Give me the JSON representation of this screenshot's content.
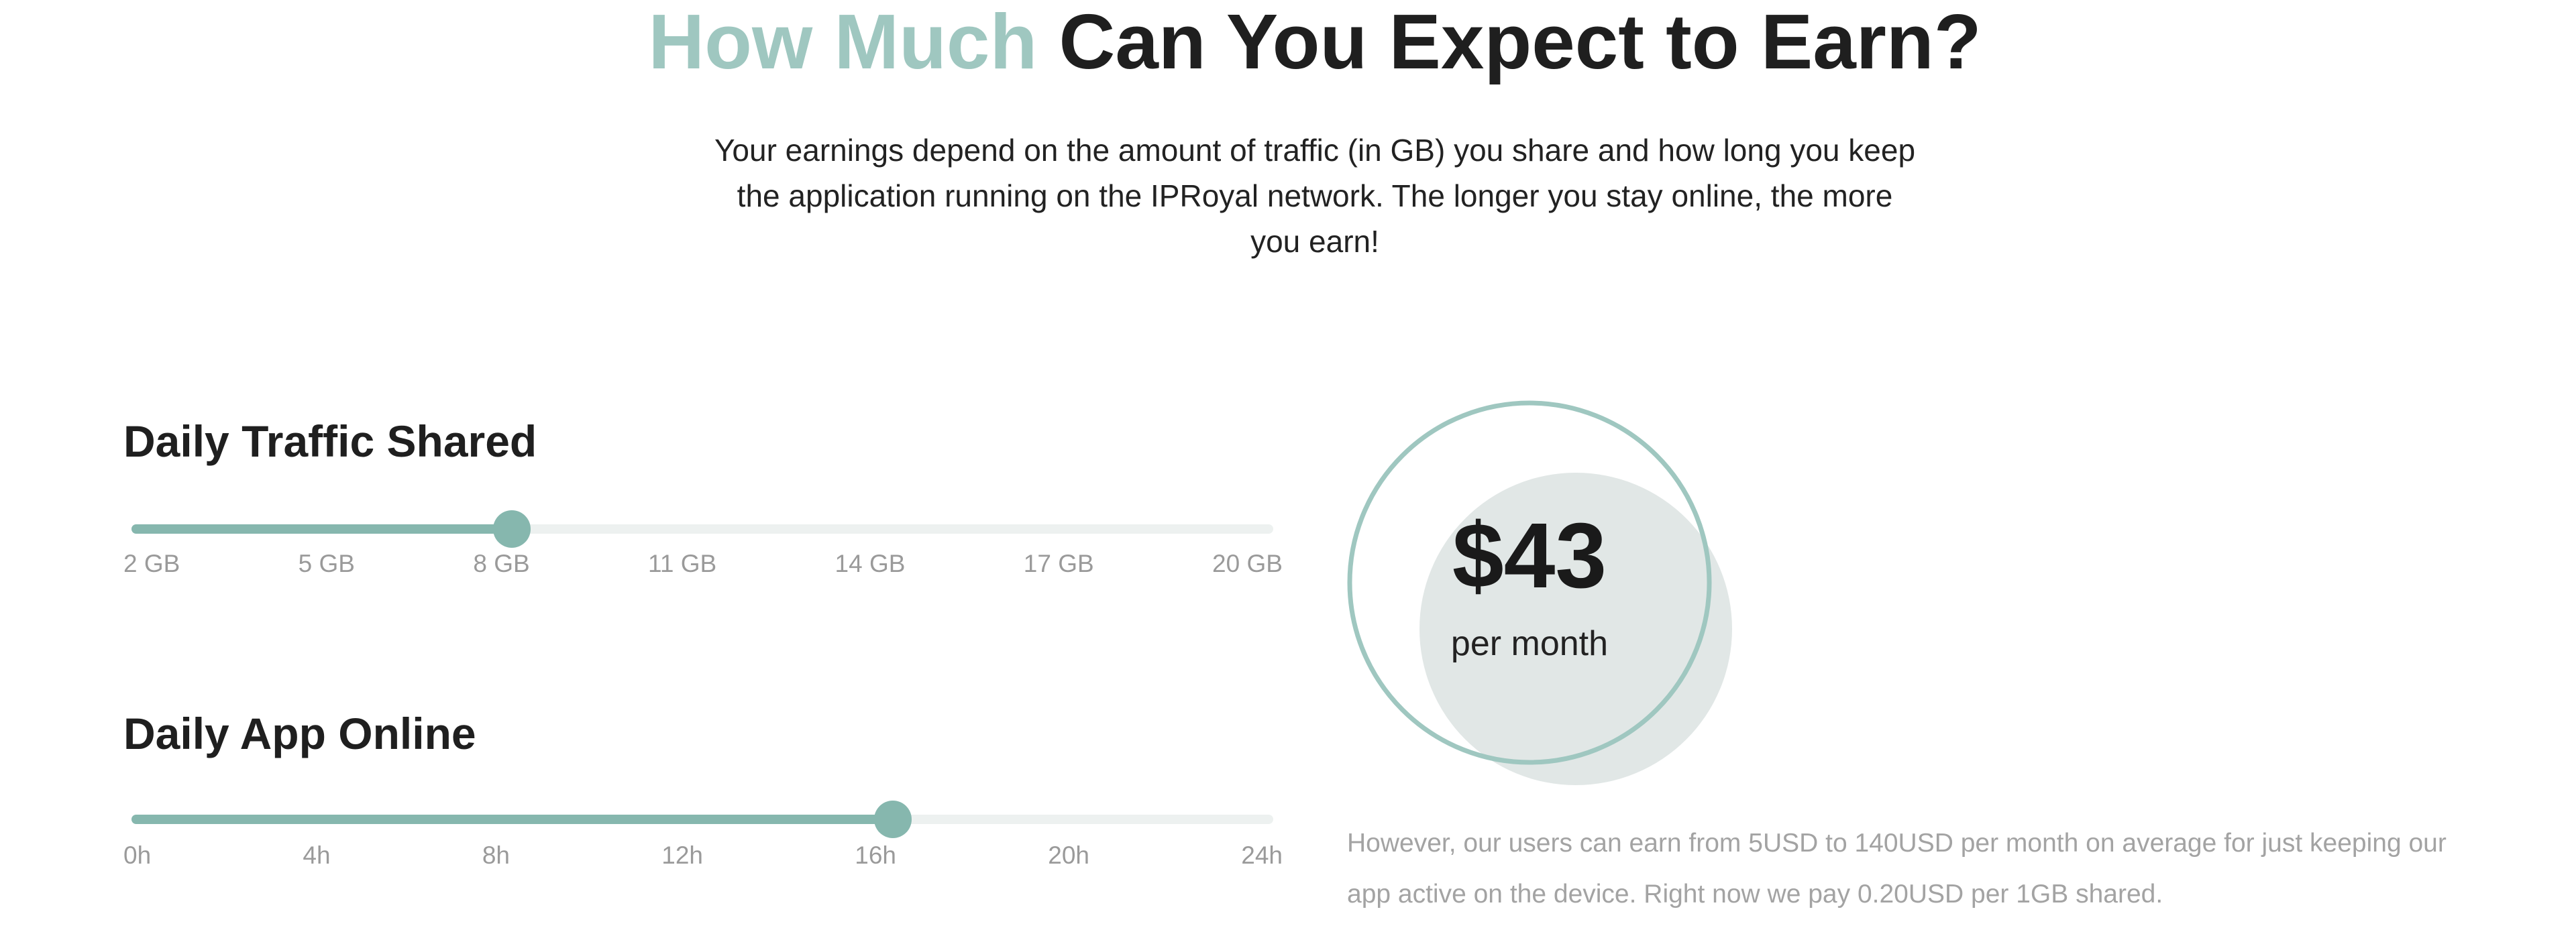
{
  "header": {
    "title_accent": "How Much",
    "title_rest": "Can You Expect to Earn?",
    "intro": "Your earnings depend on the amount of traffic (in GB) you share and how long you keep the application running on the IPRoyal network. The longer you stay online, the more you earn!"
  },
  "sliders": [
    {
      "label": "Daily Traffic Shared",
      "ticks": [
        "2 GB",
        "5 GB",
        "8 GB",
        "11 GB",
        "14 GB",
        "17 GB",
        "20 GB"
      ],
      "selected": 2
    },
    {
      "label": "Daily App Online",
      "ticks": [
        "0h",
        "4h",
        "8h",
        "12h",
        "16h",
        "20h",
        "24h"
      ],
      "selected": 4
    }
  ],
  "result": {
    "amount": "$43",
    "period": "per month"
  },
  "note": "However, our users can earn from 5USD to 140USD per month on average for just keeping our app active on the device. Right now we pay 0.20USD per 1GB shared."
}
